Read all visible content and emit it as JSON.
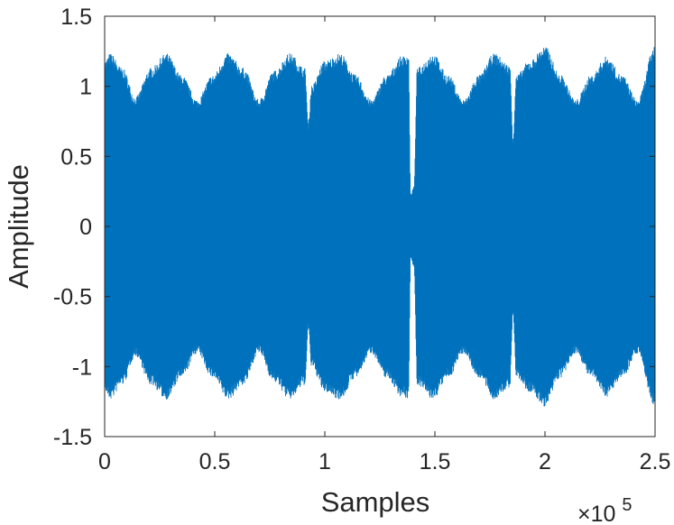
{
  "chart_data": {
    "type": "line",
    "title": "",
    "xlabel": "Samples",
    "ylabel": "Amplitude",
    "x_multiplier": "×10",
    "x_multiplier_exp": "5",
    "xlim": [
      0,
      2.5
    ],
    "ylim": [
      -1.5,
      1.5
    ],
    "x_scale_factor": 100000,
    "x_ticks": [
      0,
      0.5,
      1,
      1.5,
      2,
      2.5
    ],
    "x_tick_labels": [
      "0",
      "0.5",
      "1",
      "1.5",
      "2",
      "2.5"
    ],
    "y_ticks": [
      -1.5,
      -1,
      -0.5,
      0,
      0.5,
      1,
      1.5
    ],
    "y_tick_labels": [
      "-1.5",
      "-1",
      "-0.5",
      "0",
      "0.5",
      "1",
      "1.5"
    ],
    "grid": false,
    "series": [
      {
        "color": "#0072BD",
        "description_points": "upper envelope (x in samples, y amplitude)",
        "envelope_x": [
          0,
          2500,
          8000,
          14000,
          21000,
          28000,
          35000,
          42000,
          49000,
          56000,
          63000,
          70000,
          77000,
          84000,
          91000,
          92500,
          94000,
          100000,
          107000,
          114000,
          121000,
          128000,
          135000,
          138000,
          139000,
          140500,
          142000,
          149000,
          156000,
          163000,
          170000,
          177000,
          184000,
          185500,
          187000,
          193000,
          200000,
          207000,
          214000,
          221000,
          228000,
          235000,
          242000,
          250000
        ],
        "envelope_y": [
          1.15,
          1.2,
          1.1,
          0.9,
          1.1,
          1.2,
          1.05,
          0.88,
          1.05,
          1.2,
          1.1,
          0.88,
          1.08,
          1.2,
          1.1,
          0.72,
          0.98,
          1.15,
          1.2,
          1.05,
          0.88,
          1.05,
          1.18,
          1.2,
          0.22,
          0.28,
          1.1,
          1.2,
          1.05,
          0.88,
          1.05,
          1.2,
          1.12,
          0.62,
          1.05,
          1.15,
          1.25,
          1.05,
          0.88,
          1.05,
          1.18,
          1.05,
          0.88,
          1.25
        ]
      }
    ]
  }
}
